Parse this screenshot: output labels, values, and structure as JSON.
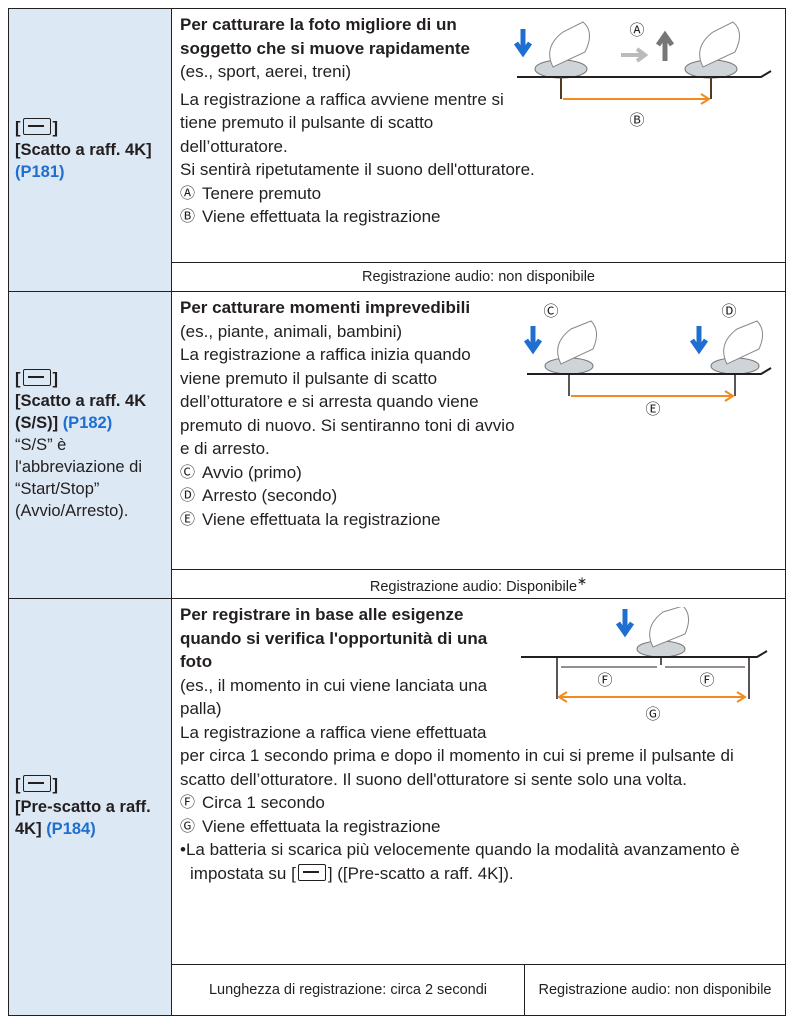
{
  "rows": [
    {
      "label": "[Scatto a raff. 4K]",
      "page": "(P181)",
      "heading": "Per catturare la foto migliore di un soggetto che si muove rapidamente",
      "example": "(es., sport, aerei, treni)",
      "paragraphs": [
        "La registrazione a raffica avviene mentre si tiene premuto il pulsante di scatto dell’otturatore.",
        "Si sentirà ripetutamente il suono dell'otturatore."
      ],
      "legend": [
        {
          "mark": "Ⓐ",
          "text": "Tenere premuto"
        },
        {
          "mark": "Ⓑ",
          "text": "Viene effettuata la registrazione"
        }
      ],
      "audio": "Registrazione audio: non disponibile"
    },
    {
      "label": "[Scatto a raff. 4K (S/S)]",
      "page": "(P182)",
      "note": "“S/S” è l'abbreviazione di “Start/Stop” (Avvio/Arresto).",
      "heading": "Per catturare momenti imprevedibili",
      "example": "(es., piante, animali, bambini)",
      "paragraphs": [
        "La registrazione a raffica inizia quando viene premuto il pulsante di scatto dell’otturatore e si arresta quando viene premuto di nuovo. Si sentiranno toni di avvio e di arresto."
      ],
      "legend": [
        {
          "mark": "Ⓒ",
          "text": "Avvio (primo)"
        },
        {
          "mark": "Ⓓ",
          "text": "Arresto (secondo)"
        },
        {
          "mark": "Ⓔ",
          "text": "Viene effettuata la registrazione"
        }
      ],
      "audio": "Registrazione audio: Disponibile",
      "audio_mark": "∗"
    },
    {
      "label": "[Pre-scatto a raff. 4K]",
      "page": "(P184)",
      "heading": "Per registrare in base alle esigenze quando si verifica l'opportunità di una foto",
      "example": "(es., il momento in cui viene lanciata una palla)",
      "paragraphs": [
        "La registrazione a raffica viene effettuata per circa 1 secondo prima e dopo il momento in cui si preme il pulsante di scatto dell’otturatore. Il suono dell'otturatore si sente solo una volta."
      ],
      "legend": [
        {
          "mark": "Ⓕ",
          "text": "Circa 1 secondo"
        },
        {
          "mark": "Ⓖ",
          "text": "Viene effettuata la registrazione"
        }
      ],
      "bullet": {
        "mark": "•",
        "before": "La batteria si scarica più velocemente quando la modalità avanzamento è impostata su [",
        "after": "] ([Pre-scatto a raff. 4K])."
      },
      "length": "Lunghezza di registrazione: circa 2 secondi",
      "audio": "Registrazione audio: non disponibile"
    }
  ]
}
